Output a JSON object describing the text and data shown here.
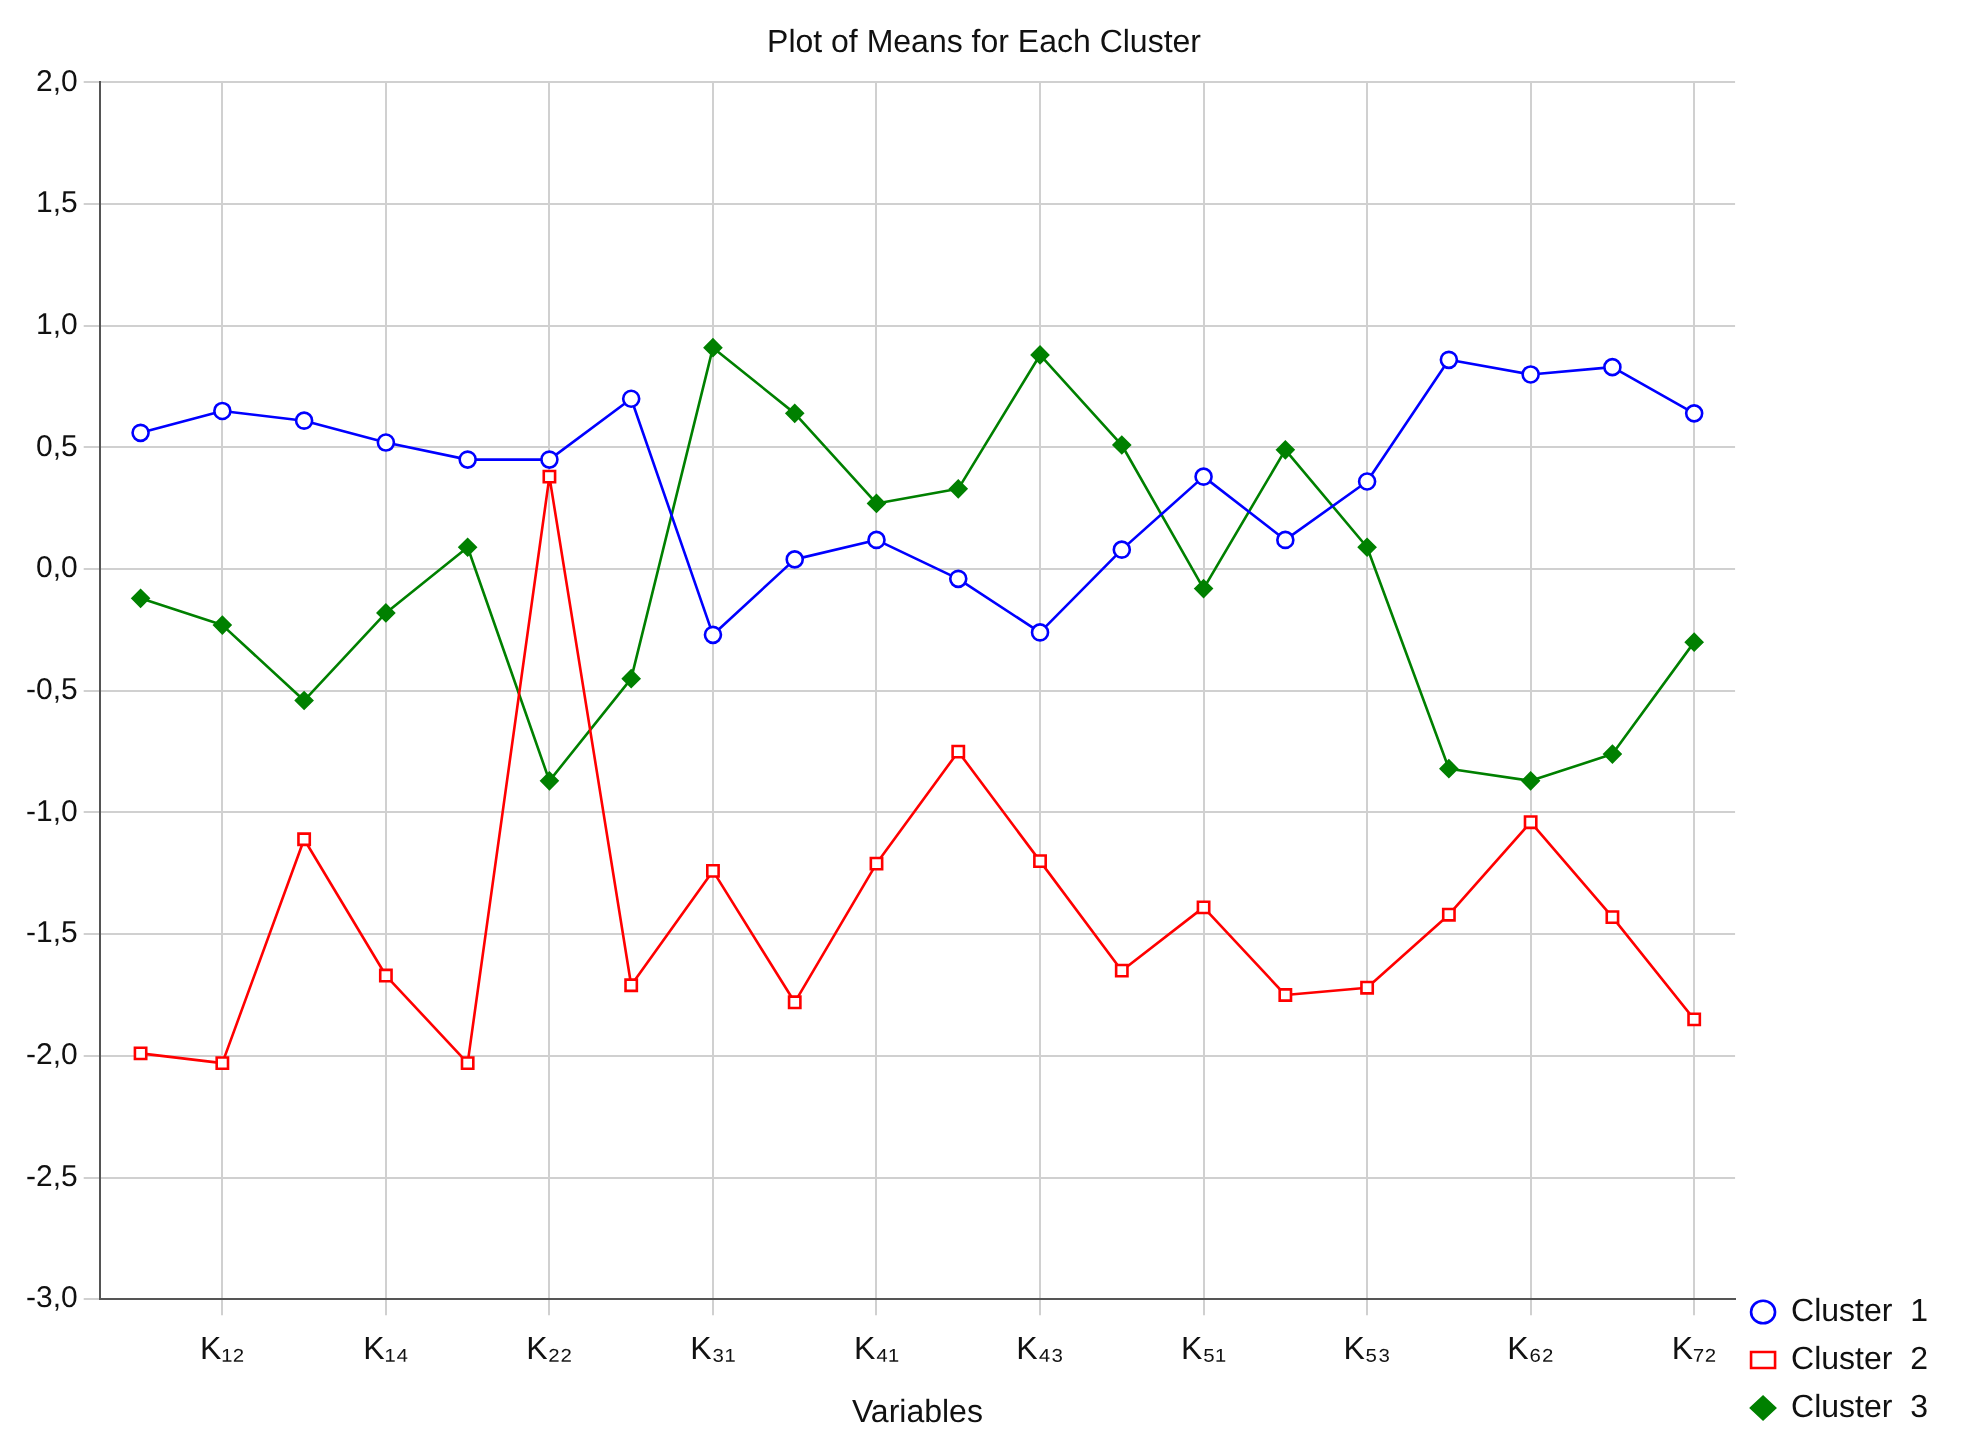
{
  "chart_data": {
    "type": "line",
    "title": "Plot of Means for Each Cluster",
    "xlabel": "Variables",
    "categories": [
      null,
      "K₁₂",
      null,
      "K₁₄",
      null,
      "K₂₂",
      null,
      "K₃₁",
      null,
      "K₄₁",
      null,
      "K₄₃",
      null,
      "K₅₁",
      null,
      "K₅₃",
      null,
      "K₆₂",
      null,
      "K₇₂"
    ],
    "series": [
      {
        "name": "Cluster  1",
        "color": "#0000ff",
        "marker": "circle",
        "values": [
          0.56,
          0.65,
          0.61,
          0.52,
          0.45,
          0.45,
          0.7,
          -0.27,
          0.04,
          0.12,
          -0.04,
          -0.26,
          0.08,
          0.38,
          0.12,
          0.36,
          0.86,
          0.8,
          0.83,
          0.64
        ]
      },
      {
        "name": "Cluster  2",
        "color": "#ff0000",
        "marker": "square",
        "values": [
          -1.99,
          -2.03,
          -1.11,
          -1.67,
          -2.03,
          0.38,
          -1.71,
          -1.24,
          -1.78,
          -1.21,
          -0.75,
          -1.2,
          -1.65,
          -1.39,
          -1.75,
          -1.72,
          -1.42,
          -1.04,
          -1.43,
          -1.85
        ]
      },
      {
        "name": "Cluster  3",
        "color": "#008000",
        "marker": "diamond",
        "values": [
          -0.12,
          -0.23,
          -0.54,
          -0.18,
          0.09,
          -0.87,
          -0.45,
          0.91,
          0.64,
          0.27,
          0.33,
          0.88,
          0.51,
          -0.08,
          0.49,
          0.09,
          -0.82,
          -0.87,
          -0.76,
          -0.3
        ]
      }
    ],
    "ylim": [
      -3,
      2
    ],
    "yticks": [
      {
        "value": 2,
        "label": "2,0"
      },
      {
        "value": 1.5,
        "label": "1,5"
      },
      {
        "value": 1,
        "label": "1,0"
      },
      {
        "value": 0.5,
        "label": "0,5"
      },
      {
        "value": 0,
        "label": "0,0"
      },
      {
        "value": -0.5,
        "label": "-0,5"
      },
      {
        "value": -1,
        "label": "-1,0"
      },
      {
        "value": -1.5,
        "label": "-1,5"
      },
      {
        "value": -2,
        "label": "-2,0"
      },
      {
        "value": -2.5,
        "label": "-2,5"
      },
      {
        "value": -3,
        "label": "-3,0"
      }
    ],
    "grid": true,
    "legend": "bottom right",
    "line_style": "solid"
  }
}
